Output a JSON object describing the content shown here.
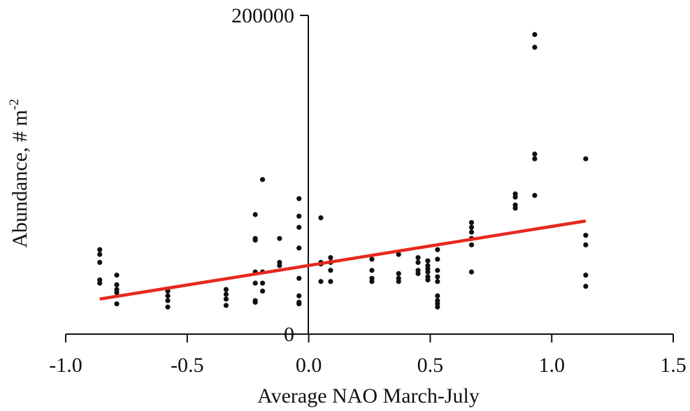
{
  "chart_data": {
    "type": "scatter",
    "title": "",
    "xlabel": "Average NAO March-July",
    "ylabel": "Abundance, # m",
    "ylabel_superscript": "-2",
    "xlim": [
      -1.0,
      1.5
    ],
    "ylim": [
      0,
      200000
    ],
    "x_ticks": [
      {
        "value": -1.0,
        "label": "-1.0"
      },
      {
        "value": -0.5,
        "label": "-0.5"
      },
      {
        "value": 0.0,
        "label": "0.0"
      },
      {
        "value": 0.5,
        "label": "0.5"
      },
      {
        "value": 1.0,
        "label": "1.0"
      },
      {
        "value": 1.5,
        "label": "1.5"
      }
    ],
    "y_ticks": [
      {
        "value": 0,
        "label": "0"
      },
      {
        "value": 200000,
        "label": "200000"
      }
    ],
    "grid": false,
    "legend": "none",
    "point_color": "#111111",
    "trendline": {
      "color": "#e8281e",
      "x": [
        -0.86,
        1.14
      ],
      "y": [
        22000,
        71000
      ]
    },
    "series": [
      {
        "points": [
          [
            -0.86,
            53000
          ],
          [
            -0.86,
            50000
          ],
          [
            -0.86,
            45000
          ],
          [
            -0.86,
            34000
          ],
          [
            -0.86,
            32000
          ],
          [
            -0.79,
            37000
          ],
          [
            -0.79,
            31000
          ],
          [
            -0.79,
            28000
          ],
          [
            -0.79,
            26000
          ],
          [
            -0.79,
            19000
          ],
          [
            -0.58,
            27000
          ],
          [
            -0.58,
            24000
          ],
          [
            -0.58,
            21000
          ],
          [
            -0.58,
            17000
          ],
          [
            -0.34,
            28000
          ],
          [
            -0.34,
            25000
          ],
          [
            -0.34,
            22000
          ],
          [
            -0.34,
            18000
          ],
          [
            -0.22,
            75000
          ],
          [
            -0.22,
            60000
          ],
          [
            -0.22,
            59000
          ],
          [
            -0.22,
            39000
          ],
          [
            -0.22,
            32000
          ],
          [
            -0.22,
            21000
          ],
          [
            -0.22,
            20000
          ],
          [
            -0.19,
            97000
          ],
          [
            -0.19,
            39000
          ],
          [
            -0.19,
            32000
          ],
          [
            -0.19,
            27000
          ],
          [
            -0.12,
            60000
          ],
          [
            -0.12,
            45000
          ],
          [
            -0.12,
            43000
          ],
          [
            -0.04,
            85000
          ],
          [
            -0.04,
            74000
          ],
          [
            -0.04,
            67000
          ],
          [
            -0.04,
            54000
          ],
          [
            -0.04,
            35000
          ],
          [
            -0.04,
            24000
          ],
          [
            -0.04,
            20000
          ],
          [
            -0.04,
            19000
          ],
          [
            0.05,
            73000
          ],
          [
            0.05,
            45000
          ],
          [
            0.05,
            44000
          ],
          [
            0.05,
            33000
          ],
          [
            0.09,
            48000
          ],
          [
            0.09,
            45000
          ],
          [
            0.09,
            40000
          ],
          [
            0.09,
            33000
          ],
          [
            0.26,
            47000
          ],
          [
            0.26,
            40000
          ],
          [
            0.26,
            35000
          ],
          [
            0.26,
            33000
          ],
          [
            0.37,
            50000
          ],
          [
            0.37,
            38000
          ],
          [
            0.37,
            35000
          ],
          [
            0.37,
            33000
          ],
          [
            0.45,
            48000
          ],
          [
            0.45,
            45000
          ],
          [
            0.45,
            40000
          ],
          [
            0.45,
            38000
          ],
          [
            0.49,
            46000
          ],
          [
            0.49,
            43000
          ],
          [
            0.49,
            41000
          ],
          [
            0.49,
            39000
          ],
          [
            0.49,
            36000
          ],
          [
            0.49,
            34000
          ],
          [
            0.53,
            53000
          ],
          [
            0.53,
            47000
          ],
          [
            0.53,
            40000
          ],
          [
            0.53,
            36000
          ],
          [
            0.53,
            33000
          ],
          [
            0.53,
            24000
          ],
          [
            0.53,
            21000
          ],
          [
            0.53,
            19000
          ],
          [
            0.53,
            17000
          ],
          [
            0.67,
            70000
          ],
          [
            0.67,
            67000
          ],
          [
            0.67,
            64000
          ],
          [
            0.67,
            60000
          ],
          [
            0.67,
            56000
          ],
          [
            0.67,
            39000
          ],
          [
            0.85,
            88000
          ],
          [
            0.85,
            86000
          ],
          [
            0.85,
            81000
          ],
          [
            0.85,
            79000
          ],
          [
            0.93,
            188000
          ],
          [
            0.93,
            180000
          ],
          [
            0.93,
            113000
          ],
          [
            0.93,
            110000
          ],
          [
            0.93,
            87000
          ],
          [
            1.14,
            110000
          ],
          [
            1.14,
            62000
          ],
          [
            1.14,
            56000
          ],
          [
            1.14,
            37000
          ],
          [
            1.14,
            30000
          ]
        ]
      }
    ]
  }
}
